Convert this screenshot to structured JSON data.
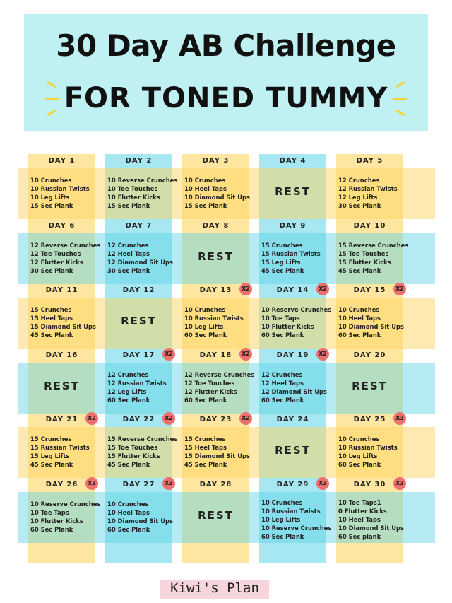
{
  "title": {
    "line1": "30 Day AB Challenge",
    "line2": "FOR TONED TUMMY"
  },
  "days": [
    {
      "label": "DAY 1",
      "exercises": [
        "10 Crunches",
        "10 Russian Twists",
        "10 Leg Lifts",
        "15 Sec Plank"
      ]
    },
    {
      "label": "DAY 2",
      "exercises": [
        "10 Reverse Crunches",
        "10 Toe Touches",
        "10 Flutter Kicks",
        "15 Sec Plank"
      ]
    },
    {
      "label": "DAY 3",
      "exercises": [
        "10 Crunches",
        "10 Heel Taps",
        "10 Diamond Sit Ups",
        "15 Sec Plank"
      ]
    },
    {
      "label": "DAY 4",
      "rest": "REST"
    },
    {
      "label": "DAY 5",
      "exercises": [
        "12 Crunches",
        "12 Russian Twists",
        "12 Leg Lifts",
        "30 Sec Plank"
      ]
    },
    {
      "label": "DAY 6",
      "exercises": [
        "12 Reverse Crunches",
        "12 Toe Touches",
        "12 Flutter Kicks",
        "30 Sec Plank"
      ]
    },
    {
      "label": "DAY 7",
      "exercises": [
        "12 Crunches",
        "12 Heel Taps",
        "12 Diamond Sit Ups",
        "30 Sec Plank"
      ]
    },
    {
      "label": "DAY 8",
      "rest": "REST"
    },
    {
      "label": "DAY 9",
      "exercises": [
        "15 Crunches",
        "15 Russian Twists",
        "15 Leg Lifts",
        "45 Sec Plank"
      ]
    },
    {
      "label": "DAY 10",
      "exercises": [
        "15 Reverse Crunches",
        "15 Toe Touches",
        "15 Flutter Kicks",
        "45 Sec Plank"
      ]
    },
    {
      "label": "DAY 11",
      "exercises": [
        "15 Crunches",
        "15 Heel Taps",
        "15 Diamond Sit Ups",
        "45 Sec Plank"
      ]
    },
    {
      "label": "DAY 12",
      "rest": "REST"
    },
    {
      "label": "DAY 13",
      "multiplier": "X2",
      "exercises": [
        "10 Crunches",
        "10 Russian Twists",
        "10 Leg Lifts",
        "60 Sec Plank"
      ]
    },
    {
      "label": "DAY 14",
      "multiplier": "X2",
      "exercises": [
        "10 Reserve Crunches",
        "10 Toe Taps",
        "10 Flutter Kicks",
        "60 Sec Plank"
      ]
    },
    {
      "label": "DAY 15",
      "multiplier": "X2",
      "exercises": [
        "10 Crunches",
        "10 Heel Taps",
        "10 Diamond Sit Ups",
        "60 Sec Plank"
      ]
    },
    {
      "label": "DAY 16",
      "rest": "REST"
    },
    {
      "label": "DAY 17",
      "multiplier": "X2",
      "exercises": [
        "12 Crunches",
        "12 Russian Twists",
        "12 Leg Lifts",
        "60 Sec Plank"
      ]
    },
    {
      "label": "DAY 18",
      "multiplier": "X2",
      "exercises": [
        "12 Reverse Crunches",
        "12 Toe Touches",
        "12 Flutter Kicks",
        "60 Sec Plank"
      ]
    },
    {
      "label": "DAY 19",
      "multiplier": "X2",
      "exercises": [
        "12 Crunches",
        "12 Heel Taps",
        "12 Diamond Sit Ups",
        "60 Sec Plank"
      ]
    },
    {
      "label": "DAY 20",
      "rest": "REST"
    },
    {
      "label": "DAY 21",
      "multiplier": "X2",
      "exercises": [
        "15 Crunches",
        "15 Russian Twists",
        "15 Leg Lifts",
        "45 Sec Plank"
      ]
    },
    {
      "label": "DAY 22",
      "multiplier": "X2",
      "exercises": [
        "15 Reverse Crunches",
        "15 Toe Touches",
        "15 Flutter Kicks",
        "45 Sec Plank"
      ]
    },
    {
      "label": "DAY 23",
      "multiplier": "X2",
      "exercises": [
        "15 Crunches",
        "15 Heel Taps",
        "15 Diamond Sit Ups",
        "45 Sec Plank"
      ]
    },
    {
      "label": "DAY 24",
      "rest": "REST"
    },
    {
      "label": "DAY 25",
      "multiplier": "X3",
      "exercises": [
        "10 Crunches",
        "10 Russian Twists",
        "10 Leg Lifts",
        "60 Sec Plank"
      ]
    },
    {
      "label": "DAY 26",
      "multiplier": "X3",
      "exercises": [
        "10 Reserve Crunches",
        "10 Toe Taps",
        "10 Flutter Kicks",
        "60 Sec Plank"
      ]
    },
    {
      "label": "DAY 27",
      "multiplier": "X3",
      "exercises": [
        "10 Crunches",
        "10 Heel Taps",
        "10 Diamond Sit Ups",
        "60 Sec Plank"
      ]
    },
    {
      "label": "DAY 28",
      "rest": "REST"
    },
    {
      "label": "DAY 29",
      "multiplier": "X3",
      "exercises": [
        "10 Crunches",
        "10 Russian Twists",
        "10 Leg Lifts",
        "10 Reserve Crunches",
        "60 Sec Plank"
      ]
    },
    {
      "label": "DAY 30",
      "multiplier": "X3",
      "exercises": [
        "10 Toe Taps1",
        "0 Flutter Kicks",
        "10 Heel Taps",
        "10 Diamond Sit Ups",
        "60 Sec plank"
      ]
    }
  ],
  "footer": "Kiwi's Plan"
}
